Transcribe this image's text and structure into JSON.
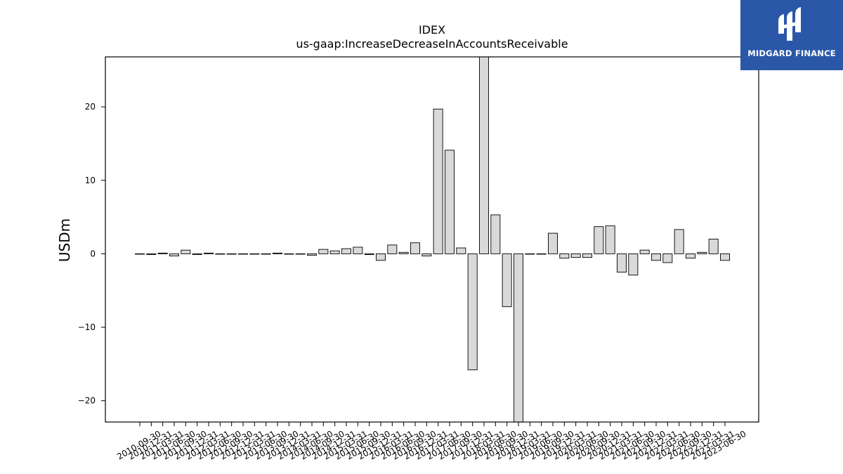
{
  "logo": {
    "text": "MIDGARD FINANCE",
    "color": "#2a57a8"
  },
  "chart_data": {
    "type": "bar",
    "title": "IDEX",
    "subtitle": "us-gaap:IncreaseDecreaseInAccountsReceivable",
    "xlabel": "",
    "ylabel": "USDm",
    "ylim": [
      -22.9,
      26.8
    ],
    "yticks": [
      -20,
      -10,
      0,
      10,
      20
    ],
    "grid": false,
    "bar_color": "#d9d9d9",
    "edge_color": "#000000",
    "categories": [
      "2010-09-30",
      "2010-12-31",
      "2011-03-31",
      "2011-06-30",
      "2011-09-30",
      "2011-12-31",
      "2012-03-31",
      "2012-06-30",
      "2012-09-30",
      "2012-12-31",
      "2013-03-31",
      "2013-06-30",
      "2013-09-30",
      "2013-12-31",
      "2014-03-31",
      "2014-06-30",
      "2014-09-30",
      "2014-12-31",
      "2015-03-31",
      "2015-06-30",
      "2015-09-30",
      "2015-12-31",
      "2016-03-31",
      "2016-06-30",
      "2016-09-30",
      "2016-12-31",
      "2017-03-31",
      "2017-06-30",
      "2017-09-30",
      "2017-12-31",
      "2018-03-31",
      "2018-06-30",
      "2018-09-30",
      "2018-12-31",
      "2019-03-31",
      "2019-06-30",
      "2019-09-30",
      "2019-12-31",
      "2020-03-31",
      "2020-06-30",
      "2020-09-30",
      "2020-12-31",
      "2021-03-31",
      "2021-06-30",
      "2021-09-30",
      "2021-12-31",
      "2022-03-31",
      "2022-06-30",
      "2022-09-30",
      "2022-12-31",
      "2023-03-31",
      "2023-06-30"
    ],
    "values": [
      0.0,
      -0.1,
      0.1,
      -0.3,
      0.5,
      -0.1,
      0.1,
      0.0,
      0.0,
      0.0,
      0.0,
      0.0,
      0.1,
      0.0,
      0.0,
      -0.2,
      0.6,
      0.4,
      0.7,
      0.9,
      -0.1,
      -0.9,
      1.2,
      0.2,
      1.5,
      -0.3,
      19.7,
      14.1,
      0.8,
      -15.8,
      26.8,
      5.3,
      -7.2,
      -22.9,
      0.0,
      0.0,
      2.8,
      -0.6,
      -0.5,
      -0.5,
      3.7,
      3.8,
      -2.5,
      -2.9,
      0.5,
      -0.9,
      -1.2,
      3.3,
      -0.6,
      0.2,
      2.0,
      -0.9
    ]
  }
}
